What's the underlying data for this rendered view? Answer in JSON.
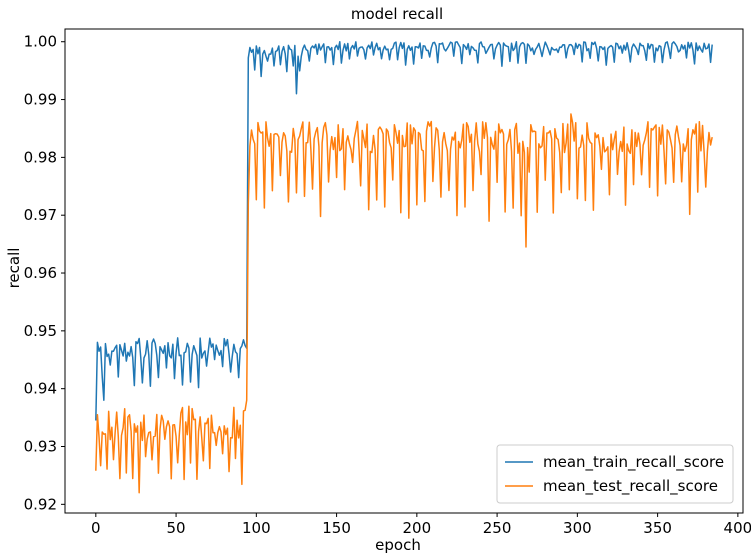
{
  "chart_data": {
    "type": "line",
    "title": "model recall",
    "xlabel": "epoch",
    "ylabel": "recall",
    "xlim": [
      -19.2,
      403.2
    ],
    "ylim": [
      0.9185,
      1.0022
    ],
    "xticks": [
      0,
      50,
      100,
      150,
      200,
      250,
      300,
      350,
      400
    ],
    "yticks": [
      0.92,
      0.93,
      0.94,
      0.95,
      0.96,
      0.97,
      0.98,
      0.99,
      1.0
    ],
    "ytick_labels": [
      "0.92",
      "0.93",
      "0.94",
      "0.95",
      "0.96",
      "0.97",
      "0.98",
      "0.99",
      "1.00"
    ],
    "grid": false,
    "legend_position": "lower-right",
    "series": [
      {
        "name": "mean_train_recall_score",
        "color": "#1f77b4",
        "segments": [
          {
            "x_start": 0,
            "x_end": 94,
            "base": 0.947,
            "amp": 0.0018,
            "dip": 0.0062,
            "dip_period": 5,
            "seed": 11
          },
          {
            "x_start": 96,
            "x_end": 128,
            "base": 0.9985,
            "amp": 0.0012,
            "dip": 0.004,
            "dip_period": 4,
            "seed": 23
          },
          {
            "x_start": 129,
            "x_end": 384,
            "base": 0.9992,
            "amp": 0.0008,
            "dip": 0.0028,
            "dip_period": 5,
            "seed": 37
          }
        ],
        "points": [
          [
            0,
            0.9345
          ],
          [
            1,
            0.948
          ],
          [
            3,
            0.9472
          ],
          [
            5,
            0.938
          ],
          [
            94,
            0.947
          ],
          [
            95,
            0.9972
          ],
          [
            96,
            0.999
          ],
          [
            125,
            0.991
          ],
          [
            384,
            0.9995
          ]
        ]
      },
      {
        "name": "mean_test_recall_score",
        "color": "#ff7f0e",
        "segments": [
          {
            "x_start": 0,
            "x_end": 94,
            "base": 0.934,
            "amp": 0.003,
            "dip": 0.0095,
            "dip_period": 4,
            "seed": 53
          },
          {
            "x_start": 96,
            "x_end": 384,
            "base": 0.9835,
            "amp": 0.0028,
            "dip": 0.014,
            "dip_period": 5,
            "seed": 71
          }
        ],
        "points": [
          [
            0,
            0.9258
          ],
          [
            1,
            0.9355
          ],
          [
            27,
            0.922
          ],
          [
            94,
            0.938
          ],
          [
            95,
            0.972
          ],
          [
            96,
            0.982
          ],
          [
            268,
            0.9645
          ],
          [
            296,
            0.9875
          ],
          [
            384,
            0.9835
          ]
        ]
      }
    ]
  }
}
